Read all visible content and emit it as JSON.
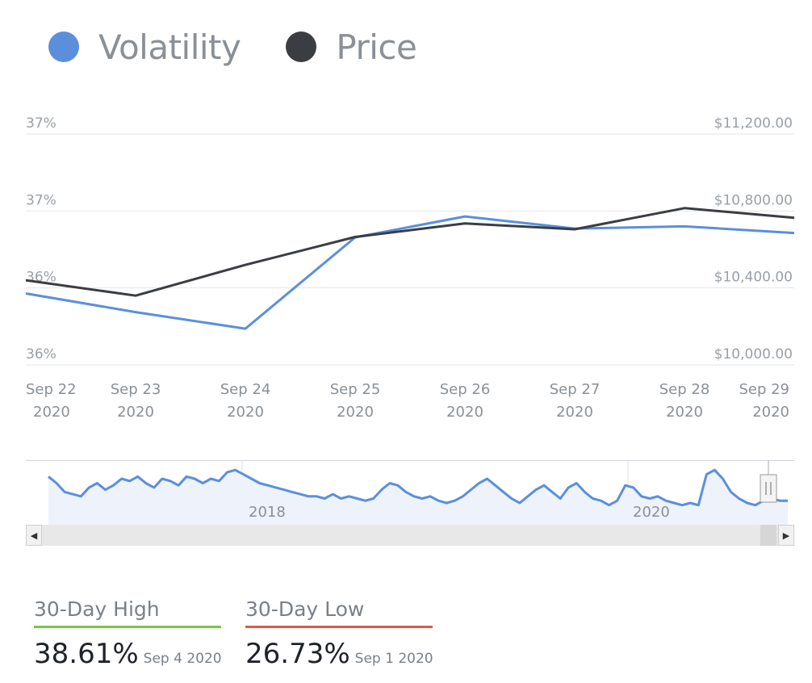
{
  "legend": [
    {
      "label": "Volatility",
      "color": "#5b8fdc"
    },
    {
      "label": "Price",
      "color": "#3a3d42"
    }
  ],
  "chart_data": {
    "type": "line",
    "x": [
      "Sep 22 2020",
      "Sep 23 2020",
      "Sep 24 2020",
      "Sep 25 2020",
      "Sep 26 2020",
      "Sep 27 2020",
      "Sep 28 2020",
      "Sep 29 2020"
    ],
    "x_tick_labels": [
      [
        "Sep 22",
        "2020"
      ],
      [
        "Sep 23",
        "2020"
      ],
      [
        "Sep 24",
        "2020"
      ],
      [
        "Sep 25",
        "2020"
      ],
      [
        "Sep 26",
        "2020"
      ],
      [
        "Sep 27",
        "2020"
      ],
      [
        "Sep 28",
        "2020"
      ],
      [
        "Sep 29",
        "2020"
      ]
    ],
    "series": [
      {
        "name": "Volatility",
        "color": "#5b8fdc",
        "axis": "left",
        "values": [
          36.15,
          35.98,
          35.83,
          36.66,
          36.85,
          36.74,
          36.76,
          36.7
        ]
      },
      {
        "name": "Price",
        "color": "#3a3d42",
        "axis": "right",
        "values": [
          10440,
          10360,
          10520,
          10665,
          10735,
          10705,
          10815,
          10765
        ]
      }
    ],
    "left_axis": {
      "ticks": [
        {
          "value": 35.5,
          "label": "36%"
        },
        {
          "value": 36.2,
          "label": "36%"
        },
        {
          "value": 36.9,
          "label": "37%"
        },
        {
          "value": 37.6,
          "label": "37%"
        }
      ],
      "range": [
        35.5,
        37.6
      ]
    },
    "right_axis": {
      "ticks": [
        {
          "value": 10000,
          "label": "$10,000.00"
        },
        {
          "value": 10400,
          "label": "$10,400.00"
        },
        {
          "value": 10800,
          "label": "$10,800.00"
        },
        {
          "value": 11200,
          "label": "$11,200.00"
        }
      ],
      "range": [
        10000,
        11200
      ]
    },
    "grid": true,
    "legend_placement": "top-left"
  },
  "navigator": {
    "year_labels": [
      "2018",
      "2020"
    ],
    "series": [
      34,
      31,
      27,
      26,
      25,
      29,
      31,
      28,
      30,
      33,
      32,
      34,
      31,
      29,
      33,
      32,
      30,
      34,
      33,
      31,
      33,
      32,
      36,
      37,
      35,
      33,
      31,
      30,
      29,
      28,
      27,
      26,
      25,
      25,
      24,
      26,
      24,
      25,
      24,
      23,
      24,
      28,
      31,
      30,
      27,
      25,
      24,
      25,
      23,
      22,
      23,
      25,
      28,
      31,
      33,
      30,
      27,
      24,
      22,
      25,
      28,
      30,
      27,
      24,
      29,
      31,
      27,
      24,
      23,
      21,
      23,
      30,
      29,
      25,
      24,
      25,
      23,
      22,
      21,
      22,
      21,
      35,
      37,
      33,
      27,
      24,
      22,
      21,
      23,
      24,
      23,
      23
    ]
  },
  "stats": [
    {
      "label": "30-Day High",
      "value": "38.61%",
      "date": "Sep 4 2020",
      "color": "#82c341"
    },
    {
      "label": "30-Day Low",
      "value": "26.73%",
      "date": "Sep 1 2020",
      "color": "#d0604a"
    }
  ]
}
